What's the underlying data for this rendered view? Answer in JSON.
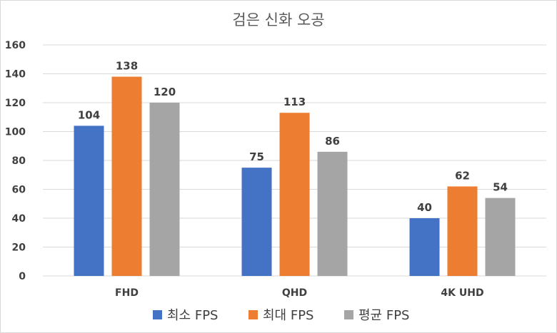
{
  "chart_data": {
    "type": "bar",
    "title": "검은 신화 오공",
    "categories": [
      "FHD",
      "QHD",
      "4K UHD"
    ],
    "series": [
      {
        "name": "최소 FPS",
        "values": [
          104,
          75,
          40
        ],
        "color": "#4472C4"
      },
      {
        "name": "최대 FPS",
        "values": [
          138,
          113,
          62
        ],
        "color": "#ED7D31"
      },
      {
        "name": "평균 FPS",
        "values": [
          120,
          86,
          54
        ],
        "color": "#A5A5A5"
      }
    ],
    "ylim": [
      0,
      160
    ],
    "yticks": [
      0,
      20,
      40,
      60,
      80,
      100,
      120,
      140,
      160
    ],
    "grid": true,
    "legend": "bottom"
  }
}
